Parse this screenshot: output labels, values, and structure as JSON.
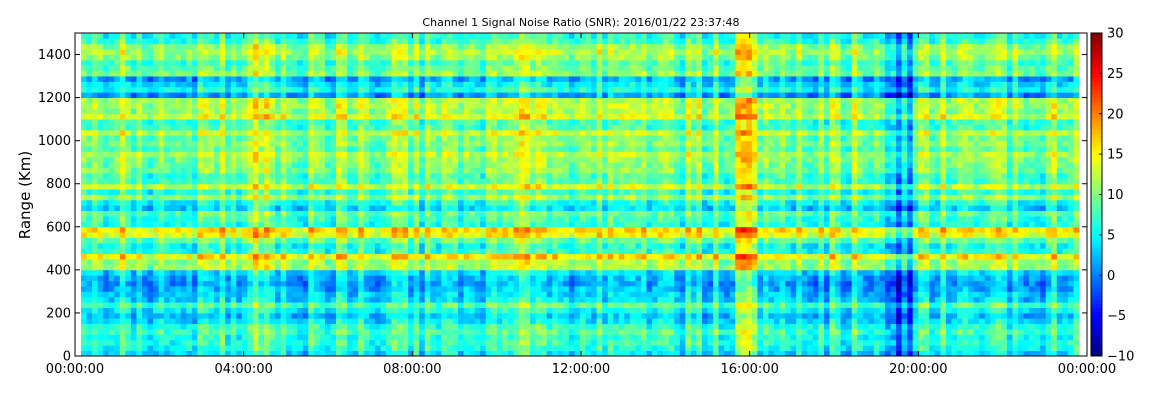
{
  "chart_data": {
    "type": "heatmap",
    "title": "Channel 1 Signal Noise Ratio (SNR): 2016/01/22 23:37:48",
    "xlabel": "",
    "ylabel": "Range (Km)",
    "x_ticks": [
      "00:00:00",
      "04:00:00",
      "08:00:00",
      "12:00:00",
      "16:00:00",
      "20:00:00",
      "00:00:00"
    ],
    "y_ticks": [
      "0",
      "200",
      "400",
      "600",
      "800",
      "1000",
      "1200",
      "1400"
    ],
    "ylim": [
      0,
      1500
    ],
    "colorbar": {
      "colormap": "jet",
      "range": [
        -10,
        30
      ],
      "ticks": [
        "−10",
        "−5",
        "0",
        "5",
        "10",
        "15",
        "20",
        "25",
        "30"
      ]
    },
    "grid": false,
    "range_profile_snr": [
      {
        "range_km": [
          0,
          100
        ],
        "snr": 7
      },
      {
        "range_km": [
          100,
          200
        ],
        "snr": 6
      },
      {
        "range_km": [
          200,
          280
        ],
        "snr": 8
      },
      {
        "range_km": [
          280,
          400
        ],
        "snr": 4
      },
      {
        "range_km": [
          400,
          480
        ],
        "snr": 12
      },
      {
        "range_km": [
          480,
          540
        ],
        "snr": 6
      },
      {
        "range_km": [
          540,
          600
        ],
        "snr": 13
      },
      {
        "range_km": [
          600,
          700
        ],
        "snr": 8
      },
      {
        "range_km": [
          700,
          800
        ],
        "snr": 10
      },
      {
        "range_km": [
          800,
          940
        ],
        "snr": 11
      },
      {
        "range_km": [
          940,
          1040
        ],
        "snr": 9
      },
      {
        "range_km": [
          1040,
          1200
        ],
        "snr": 10
      },
      {
        "range_km": [
          1200,
          1300
        ],
        "snr": 5
      },
      {
        "range_km": [
          1300,
          1420
        ],
        "snr": 9
      },
      {
        "range_km": [
          1420,
          1500
        ],
        "snr": 7
      }
    ],
    "time_features": [
      {
        "time": "04:20",
        "snr_offset": 4
      },
      {
        "time": "10:30",
        "snr_offset": 4
      },
      {
        "time": "16:00",
        "snr_offset": 6
      },
      {
        "time": "19:40",
        "snr_offset": -6
      }
    ]
  }
}
